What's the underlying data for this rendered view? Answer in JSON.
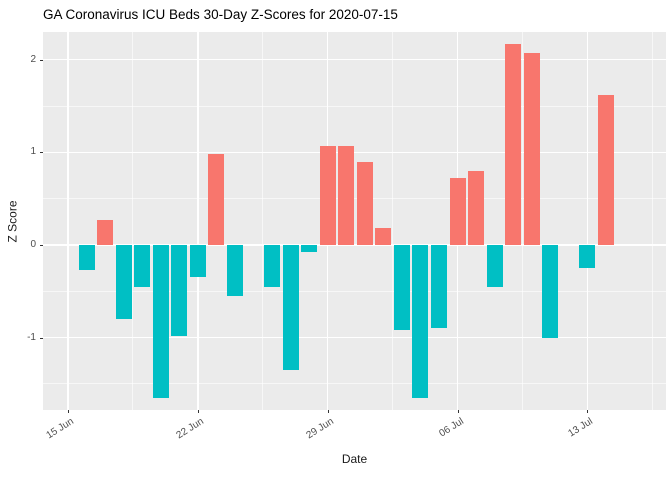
{
  "chart_data": {
    "type": "bar",
    "title": "GA Coronavirus ICU Beds 30-Day Z-Scores for 2020-07-15",
    "xlabel": "Date",
    "ylabel": "Z Score",
    "ylim": [
      -1.78,
      2.3
    ],
    "yticks": [
      -1,
      0,
      1,
      2
    ],
    "yticks_minor": [
      -1.5,
      -0.5,
      0.5,
      1.5
    ],
    "xticks": [
      {
        "label": "15 Jun",
        "day": 0
      },
      {
        "label": "22 Jun",
        "day": 7
      },
      {
        "label": "29 Jun",
        "day": 14
      },
      {
        "label": "06 Jul",
        "day": 21
      },
      {
        "label": "13 Jul",
        "day": 28
      }
    ],
    "grid": true,
    "legend": "none",
    "panel_background": "#EBEBEB",
    "bar_colors": {
      "positive": "#F8766D",
      "negative": "#00BFC4"
    },
    "points": [
      {
        "date": "16 Jun",
        "day": 1,
        "value": -0.27
      },
      {
        "date": "17 Jun",
        "day": 2,
        "value": 0.27
      },
      {
        "date": "18 Jun",
        "day": 3,
        "value": -0.8
      },
      {
        "date": "19 Jun",
        "day": 4,
        "value": -0.45
      },
      {
        "date": "20 Jun",
        "day": 5,
        "value": -1.65
      },
      {
        "date": "21 Jun",
        "day": 6,
        "value": -0.98
      },
      {
        "date": "22 Jun",
        "day": 7,
        "value": -0.35
      },
      {
        "date": "23 Jun",
        "day": 8,
        "value": 0.98
      },
      {
        "date": "24 Jun",
        "day": 9,
        "value": -0.55
      },
      {
        "date": "25 Jun",
        "day": 10,
        "value": 0
      },
      {
        "date": "26 Jun",
        "day": 11,
        "value": -0.45
      },
      {
        "date": "27 Jun",
        "day": 12,
        "value": -1.35
      },
      {
        "date": "28 Jun",
        "day": 13,
        "value": -0.08
      },
      {
        "date": "29 Jun",
        "day": 14,
        "value": 1.07
      },
      {
        "date": "30 Jun",
        "day": 15,
        "value": 1.07
      },
      {
        "date": "01 Jul",
        "day": 16,
        "value": 0.9
      },
      {
        "date": "02 Jul",
        "day": 17,
        "value": 0.18
      },
      {
        "date": "03 Jul",
        "day": 18,
        "value": -0.92
      },
      {
        "date": "04 Jul",
        "day": 19,
        "value": -1.65
      },
      {
        "date": "05 Jul",
        "day": 20,
        "value": -0.9
      },
      {
        "date": "06 Jul",
        "day": 21,
        "value": 0.72
      },
      {
        "date": "07 Jul",
        "day": 22,
        "value": 0.8
      },
      {
        "date": "08 Jul",
        "day": 23,
        "value": -0.45
      },
      {
        "date": "09 Jul",
        "day": 24,
        "value": 2.17
      },
      {
        "date": "10 Jul",
        "day": 25,
        "value": 2.07
      },
      {
        "date": "11 Jul",
        "day": 26,
        "value": -1.0
      },
      {
        "date": "12 Jul",
        "day": 27,
        "value": 0
      },
      {
        "date": "13 Jul",
        "day": 28,
        "value": -0.25
      },
      {
        "date": "14 Jul",
        "day": 29,
        "value": 1.62
      }
    ]
  }
}
